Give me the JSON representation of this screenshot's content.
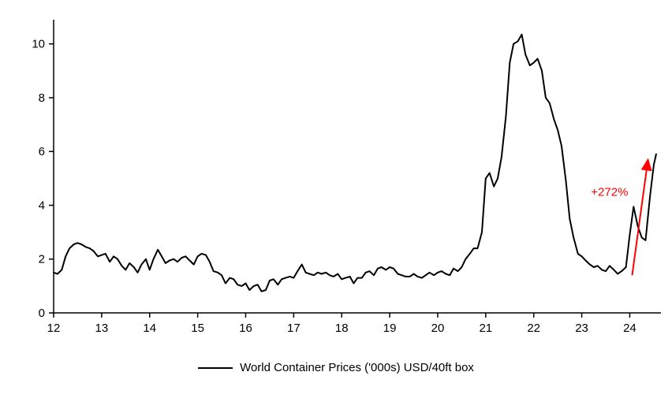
{
  "chart_data": {
    "type": "line",
    "title": "",
    "xlabel": "",
    "ylabel": "",
    "legend": "World Container Prices ('000s) USD/40ft box",
    "legend_position": "bottom-center",
    "grid": false,
    "line_color": "#000000",
    "axis_color": "#000000",
    "xlim": [
      12,
      24.65
    ],
    "ylim": [
      0,
      10.9
    ],
    "x_ticks": [
      12,
      13,
      14,
      15,
      16,
      17,
      18,
      19,
      20,
      21,
      22,
      23,
      24
    ],
    "y_ticks": [
      0,
      2,
      4,
      6,
      8,
      10
    ],
    "points": [
      [
        12.0,
        1.5
      ],
      [
        12.08,
        1.45
      ],
      [
        12.17,
        1.6
      ],
      [
        12.25,
        2.1
      ],
      [
        12.33,
        2.4
      ],
      [
        12.42,
        2.55
      ],
      [
        12.5,
        2.6
      ],
      [
        12.58,
        2.55
      ],
      [
        12.67,
        2.45
      ],
      [
        12.75,
        2.4
      ],
      [
        12.83,
        2.3
      ],
      [
        12.92,
        2.1
      ],
      [
        13.0,
        2.15
      ],
      [
        13.08,
        2.2
      ],
      [
        13.17,
        1.9
      ],
      [
        13.25,
        2.1
      ],
      [
        13.33,
        2.0
      ],
      [
        13.42,
        1.75
      ],
      [
        13.5,
        1.6
      ],
      [
        13.58,
        1.85
      ],
      [
        13.67,
        1.7
      ],
      [
        13.75,
        1.5
      ],
      [
        13.83,
        1.8
      ],
      [
        13.92,
        2.0
      ],
      [
        14.0,
        1.6
      ],
      [
        14.08,
        2.0
      ],
      [
        14.17,
        2.35
      ],
      [
        14.25,
        2.1
      ],
      [
        14.33,
        1.85
      ],
      [
        14.42,
        1.95
      ],
      [
        14.5,
        2.0
      ],
      [
        14.58,
        1.9
      ],
      [
        14.67,
        2.05
      ],
      [
        14.75,
        2.1
      ],
      [
        14.83,
        1.95
      ],
      [
        14.92,
        1.8
      ],
      [
        15.0,
        2.1
      ],
      [
        15.08,
        2.2
      ],
      [
        15.17,
        2.15
      ],
      [
        15.25,
        1.9
      ],
      [
        15.33,
        1.55
      ],
      [
        15.42,
        1.5
      ],
      [
        15.5,
        1.4
      ],
      [
        15.58,
        1.1
      ],
      [
        15.67,
        1.3
      ],
      [
        15.75,
        1.25
      ],
      [
        15.83,
        1.05
      ],
      [
        15.92,
        1.0
      ],
      [
        16.0,
        1.1
      ],
      [
        16.08,
        0.85
      ],
      [
        16.17,
        1.0
      ],
      [
        16.25,
        1.05
      ],
      [
        16.33,
        0.8
      ],
      [
        16.42,
        0.85
      ],
      [
        16.5,
        1.2
      ],
      [
        16.58,
        1.25
      ],
      [
        16.67,
        1.05
      ],
      [
        16.75,
        1.25
      ],
      [
        16.83,
        1.3
      ],
      [
        16.92,
        1.35
      ],
      [
        17.0,
        1.3
      ],
      [
        17.08,
        1.55
      ],
      [
        17.17,
        1.8
      ],
      [
        17.25,
        1.5
      ],
      [
        17.33,
        1.45
      ],
      [
        17.42,
        1.4
      ],
      [
        17.5,
        1.5
      ],
      [
        17.58,
        1.45
      ],
      [
        17.67,
        1.5
      ],
      [
        17.75,
        1.4
      ],
      [
        17.83,
        1.35
      ],
      [
        17.92,
        1.45
      ],
      [
        18.0,
        1.25
      ],
      [
        18.08,
        1.3
      ],
      [
        18.17,
        1.35
      ],
      [
        18.25,
        1.1
      ],
      [
        18.33,
        1.3
      ],
      [
        18.42,
        1.3
      ],
      [
        18.5,
        1.5
      ],
      [
        18.58,
        1.55
      ],
      [
        18.67,
        1.4
      ],
      [
        18.75,
        1.65
      ],
      [
        18.83,
        1.7
      ],
      [
        18.92,
        1.6
      ],
      [
        19.0,
        1.7
      ],
      [
        19.08,
        1.65
      ],
      [
        19.17,
        1.45
      ],
      [
        19.25,
        1.4
      ],
      [
        19.33,
        1.35
      ],
      [
        19.42,
        1.35
      ],
      [
        19.5,
        1.45
      ],
      [
        19.58,
        1.35
      ],
      [
        19.67,
        1.3
      ],
      [
        19.75,
        1.4
      ],
      [
        19.83,
        1.5
      ],
      [
        19.92,
        1.4
      ],
      [
        20.0,
        1.5
      ],
      [
        20.08,
        1.55
      ],
      [
        20.17,
        1.45
      ],
      [
        20.25,
        1.4
      ],
      [
        20.33,
        1.65
      ],
      [
        20.42,
        1.55
      ],
      [
        20.5,
        1.7
      ],
      [
        20.58,
        2.0
      ],
      [
        20.67,
        2.2
      ],
      [
        20.75,
        2.4
      ],
      [
        20.83,
        2.4
      ],
      [
        20.92,
        3.0
      ],
      [
        21.0,
        5.0
      ],
      [
        21.08,
        5.2
      ],
      [
        21.17,
        4.7
      ],
      [
        21.25,
        5.0
      ],
      [
        21.33,
        5.8
      ],
      [
        21.42,
        7.3
      ],
      [
        21.5,
        9.3
      ],
      [
        21.58,
        10.0
      ],
      [
        21.67,
        10.1
      ],
      [
        21.75,
        10.35
      ],
      [
        21.83,
        9.6
      ],
      [
        21.92,
        9.2
      ],
      [
        22.0,
        9.3
      ],
      [
        22.08,
        9.45
      ],
      [
        22.17,
        9.0
      ],
      [
        22.25,
        8.0
      ],
      [
        22.33,
        7.8
      ],
      [
        22.42,
        7.2
      ],
      [
        22.5,
        6.8
      ],
      [
        22.58,
        6.2
      ],
      [
        22.67,
        4.9
      ],
      [
        22.75,
        3.5
      ],
      [
        22.83,
        2.8
      ],
      [
        22.92,
        2.2
      ],
      [
        23.0,
        2.1
      ],
      [
        23.08,
        1.95
      ],
      [
        23.17,
        1.8
      ],
      [
        23.25,
        1.7
      ],
      [
        23.33,
        1.75
      ],
      [
        23.42,
        1.6
      ],
      [
        23.5,
        1.55
      ],
      [
        23.58,
        1.75
      ],
      [
        23.67,
        1.6
      ],
      [
        23.75,
        1.45
      ],
      [
        23.83,
        1.55
      ],
      [
        23.92,
        1.7
      ],
      [
        24.0,
        2.9
      ],
      [
        24.08,
        3.95
      ],
      [
        24.17,
        3.2
      ],
      [
        24.25,
        2.8
      ],
      [
        24.33,
        2.7
      ],
      [
        24.42,
        4.3
      ],
      [
        24.5,
        5.5
      ],
      [
        24.55,
        5.9
      ]
    ],
    "annotation": {
      "label": "+272%",
      "color": "#ff0000",
      "label_x": 23.58,
      "label_y": 4.35,
      "arrow_from": [
        24.05,
        1.4
      ],
      "arrow_to": [
        24.38,
        5.7
      ]
    }
  }
}
